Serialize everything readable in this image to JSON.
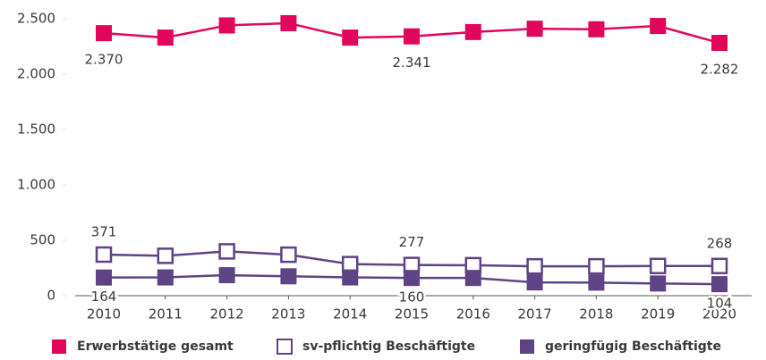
{
  "chart_data": {
    "type": "line",
    "categories": [
      "2010",
      "2011",
      "2012",
      "2013",
      "2014",
      "2015",
      "2016",
      "2017",
      "2018",
      "2019",
      "2020"
    ],
    "ylim": [
      0,
      2500
    ],
    "yticks": [
      0,
      500,
      {
        "value": 1000,
        "label": "1.000"
      },
      {
        "value": 1500,
        "label": "1.500"
      },
      {
        "value": 2000,
        "label": "2.000"
      },
      {
        "value": 2500,
        "label": "2.500"
      }
    ],
    "series": [
      {
        "name": "Erwerbstätige gesamt",
        "color": "#e2055c",
        "marker": "filled",
        "values": [
          2370,
          2330,
          2440,
          2460,
          2330,
          2341,
          2380,
          2410,
          2405,
          2435,
          2282
        ],
        "value_labels": [
          "2.370",
          null,
          null,
          null,
          null,
          "2.341",
          null,
          null,
          null,
          null,
          "2.282"
        ]
      },
      {
        "name": "sv-pflichtig Beschäftigte",
        "color": "#5e4385",
        "marker": "open",
        "values": [
          371,
          360,
          400,
          370,
          285,
          277,
          275,
          265,
          265,
          268,
          268
        ],
        "value_labels": [
          "371",
          null,
          null,
          null,
          null,
          "277",
          null,
          null,
          null,
          null,
          "268"
        ]
      },
      {
        "name": "geringfügig Beschäftigte",
        "color": "#5e4385",
        "marker": "filled",
        "values": [
          164,
          165,
          185,
          175,
          165,
          160,
          160,
          120,
          118,
          110,
          104
        ],
        "value_labels": [
          "164",
          null,
          null,
          null,
          null,
          "160",
          null,
          null,
          null,
          null,
          "104"
        ]
      }
    ]
  }
}
